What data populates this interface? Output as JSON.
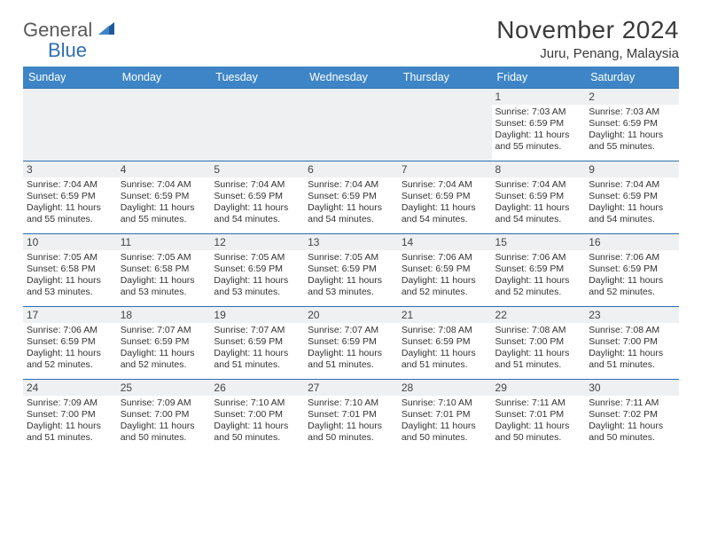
{
  "logo": {
    "text1": "General",
    "text2": "Blue"
  },
  "title": "November 2024",
  "location": "Juru, Penang, Malaysia",
  "colors": {
    "header_bg": "#3d85c6",
    "header_fg": "#ffffff",
    "cell_border": "#2f6fb0",
    "daynum_bg": "#eef0f2",
    "text": "#333333",
    "logo_gray": "#5a5a5a",
    "logo_blue": "#2f6fb0"
  },
  "day_headers": [
    "Sunday",
    "Monday",
    "Tuesday",
    "Wednesday",
    "Thursday",
    "Friday",
    "Saturday"
  ],
  "weeks": [
    [
      {
        "blank": true
      },
      {
        "blank": true
      },
      {
        "blank": true
      },
      {
        "blank": true
      },
      {
        "blank": true
      },
      {
        "day": "1",
        "sunrise": "Sunrise: 7:03 AM",
        "sunset": "Sunset: 6:59 PM",
        "daylight": "Daylight: 11 hours and 55 minutes."
      },
      {
        "day": "2",
        "sunrise": "Sunrise: 7:03 AM",
        "sunset": "Sunset: 6:59 PM",
        "daylight": "Daylight: 11 hours and 55 minutes."
      }
    ],
    [
      {
        "day": "3",
        "sunrise": "Sunrise: 7:04 AM",
        "sunset": "Sunset: 6:59 PM",
        "daylight": "Daylight: 11 hours and 55 minutes."
      },
      {
        "day": "4",
        "sunrise": "Sunrise: 7:04 AM",
        "sunset": "Sunset: 6:59 PM",
        "daylight": "Daylight: 11 hours and 55 minutes."
      },
      {
        "day": "5",
        "sunrise": "Sunrise: 7:04 AM",
        "sunset": "Sunset: 6:59 PM",
        "daylight": "Daylight: 11 hours and 54 minutes."
      },
      {
        "day": "6",
        "sunrise": "Sunrise: 7:04 AM",
        "sunset": "Sunset: 6:59 PM",
        "daylight": "Daylight: 11 hours and 54 minutes."
      },
      {
        "day": "7",
        "sunrise": "Sunrise: 7:04 AM",
        "sunset": "Sunset: 6:59 PM",
        "daylight": "Daylight: 11 hours and 54 minutes."
      },
      {
        "day": "8",
        "sunrise": "Sunrise: 7:04 AM",
        "sunset": "Sunset: 6:59 PM",
        "daylight": "Daylight: 11 hours and 54 minutes."
      },
      {
        "day": "9",
        "sunrise": "Sunrise: 7:04 AM",
        "sunset": "Sunset: 6:59 PM",
        "daylight": "Daylight: 11 hours and 54 minutes."
      }
    ],
    [
      {
        "day": "10",
        "sunrise": "Sunrise: 7:05 AM",
        "sunset": "Sunset: 6:58 PM",
        "daylight": "Daylight: 11 hours and 53 minutes."
      },
      {
        "day": "11",
        "sunrise": "Sunrise: 7:05 AM",
        "sunset": "Sunset: 6:58 PM",
        "daylight": "Daylight: 11 hours and 53 minutes."
      },
      {
        "day": "12",
        "sunrise": "Sunrise: 7:05 AM",
        "sunset": "Sunset: 6:59 PM",
        "daylight": "Daylight: 11 hours and 53 minutes."
      },
      {
        "day": "13",
        "sunrise": "Sunrise: 7:05 AM",
        "sunset": "Sunset: 6:59 PM",
        "daylight": "Daylight: 11 hours and 53 minutes."
      },
      {
        "day": "14",
        "sunrise": "Sunrise: 7:06 AM",
        "sunset": "Sunset: 6:59 PM",
        "daylight": "Daylight: 11 hours and 52 minutes."
      },
      {
        "day": "15",
        "sunrise": "Sunrise: 7:06 AM",
        "sunset": "Sunset: 6:59 PM",
        "daylight": "Daylight: 11 hours and 52 minutes."
      },
      {
        "day": "16",
        "sunrise": "Sunrise: 7:06 AM",
        "sunset": "Sunset: 6:59 PM",
        "daylight": "Daylight: 11 hours and 52 minutes."
      }
    ],
    [
      {
        "day": "17",
        "sunrise": "Sunrise: 7:06 AM",
        "sunset": "Sunset: 6:59 PM",
        "daylight": "Daylight: 11 hours and 52 minutes."
      },
      {
        "day": "18",
        "sunrise": "Sunrise: 7:07 AM",
        "sunset": "Sunset: 6:59 PM",
        "daylight": "Daylight: 11 hours and 52 minutes."
      },
      {
        "day": "19",
        "sunrise": "Sunrise: 7:07 AM",
        "sunset": "Sunset: 6:59 PM",
        "daylight": "Daylight: 11 hours and 51 minutes."
      },
      {
        "day": "20",
        "sunrise": "Sunrise: 7:07 AM",
        "sunset": "Sunset: 6:59 PM",
        "daylight": "Daylight: 11 hours and 51 minutes."
      },
      {
        "day": "21",
        "sunrise": "Sunrise: 7:08 AM",
        "sunset": "Sunset: 6:59 PM",
        "daylight": "Daylight: 11 hours and 51 minutes."
      },
      {
        "day": "22",
        "sunrise": "Sunrise: 7:08 AM",
        "sunset": "Sunset: 7:00 PM",
        "daylight": "Daylight: 11 hours and 51 minutes."
      },
      {
        "day": "23",
        "sunrise": "Sunrise: 7:08 AM",
        "sunset": "Sunset: 7:00 PM",
        "daylight": "Daylight: 11 hours and 51 minutes."
      }
    ],
    [
      {
        "day": "24",
        "sunrise": "Sunrise: 7:09 AM",
        "sunset": "Sunset: 7:00 PM",
        "daylight": "Daylight: 11 hours and 51 minutes."
      },
      {
        "day": "25",
        "sunrise": "Sunrise: 7:09 AM",
        "sunset": "Sunset: 7:00 PM",
        "daylight": "Daylight: 11 hours and 50 minutes."
      },
      {
        "day": "26",
        "sunrise": "Sunrise: 7:10 AM",
        "sunset": "Sunset: 7:00 PM",
        "daylight": "Daylight: 11 hours and 50 minutes."
      },
      {
        "day": "27",
        "sunrise": "Sunrise: 7:10 AM",
        "sunset": "Sunset: 7:01 PM",
        "daylight": "Daylight: 11 hours and 50 minutes."
      },
      {
        "day": "28",
        "sunrise": "Sunrise: 7:10 AM",
        "sunset": "Sunset: 7:01 PM",
        "daylight": "Daylight: 11 hours and 50 minutes."
      },
      {
        "day": "29",
        "sunrise": "Sunrise: 7:11 AM",
        "sunset": "Sunset: 7:01 PM",
        "daylight": "Daylight: 11 hours and 50 minutes."
      },
      {
        "day": "30",
        "sunrise": "Sunrise: 7:11 AM",
        "sunset": "Sunset: 7:02 PM",
        "daylight": "Daylight: 11 hours and 50 minutes."
      }
    ]
  ]
}
